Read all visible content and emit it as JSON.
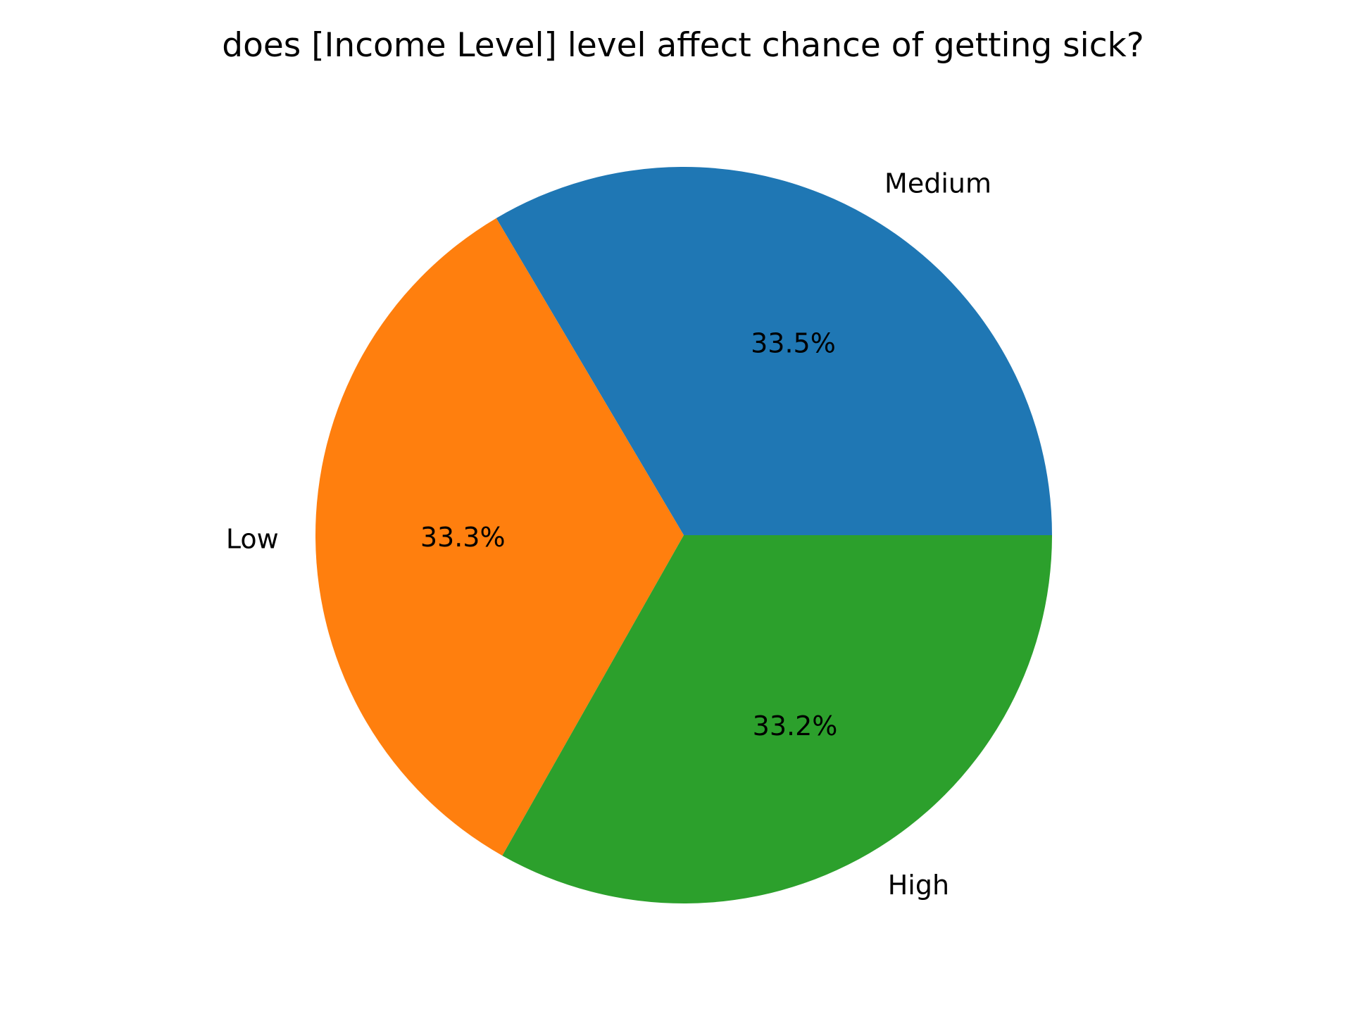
{
  "chart_data": {
    "type": "pie",
    "title": "does [Income Level] level affect chance of getting sick?",
    "start_angle_deg": 0,
    "direction": "counterclockwise",
    "slices": [
      {
        "label": "Medium",
        "value": 33.5,
        "pct_label": "33.5%",
        "color": "#1f77b4"
      },
      {
        "label": "Low",
        "value": 33.3,
        "pct_label": "33.3%",
        "color": "#ff7f0e"
      },
      {
        "label": "High",
        "value": 33.2,
        "pct_label": "33.2%",
        "color": "#2ca02c"
      }
    ]
  }
}
